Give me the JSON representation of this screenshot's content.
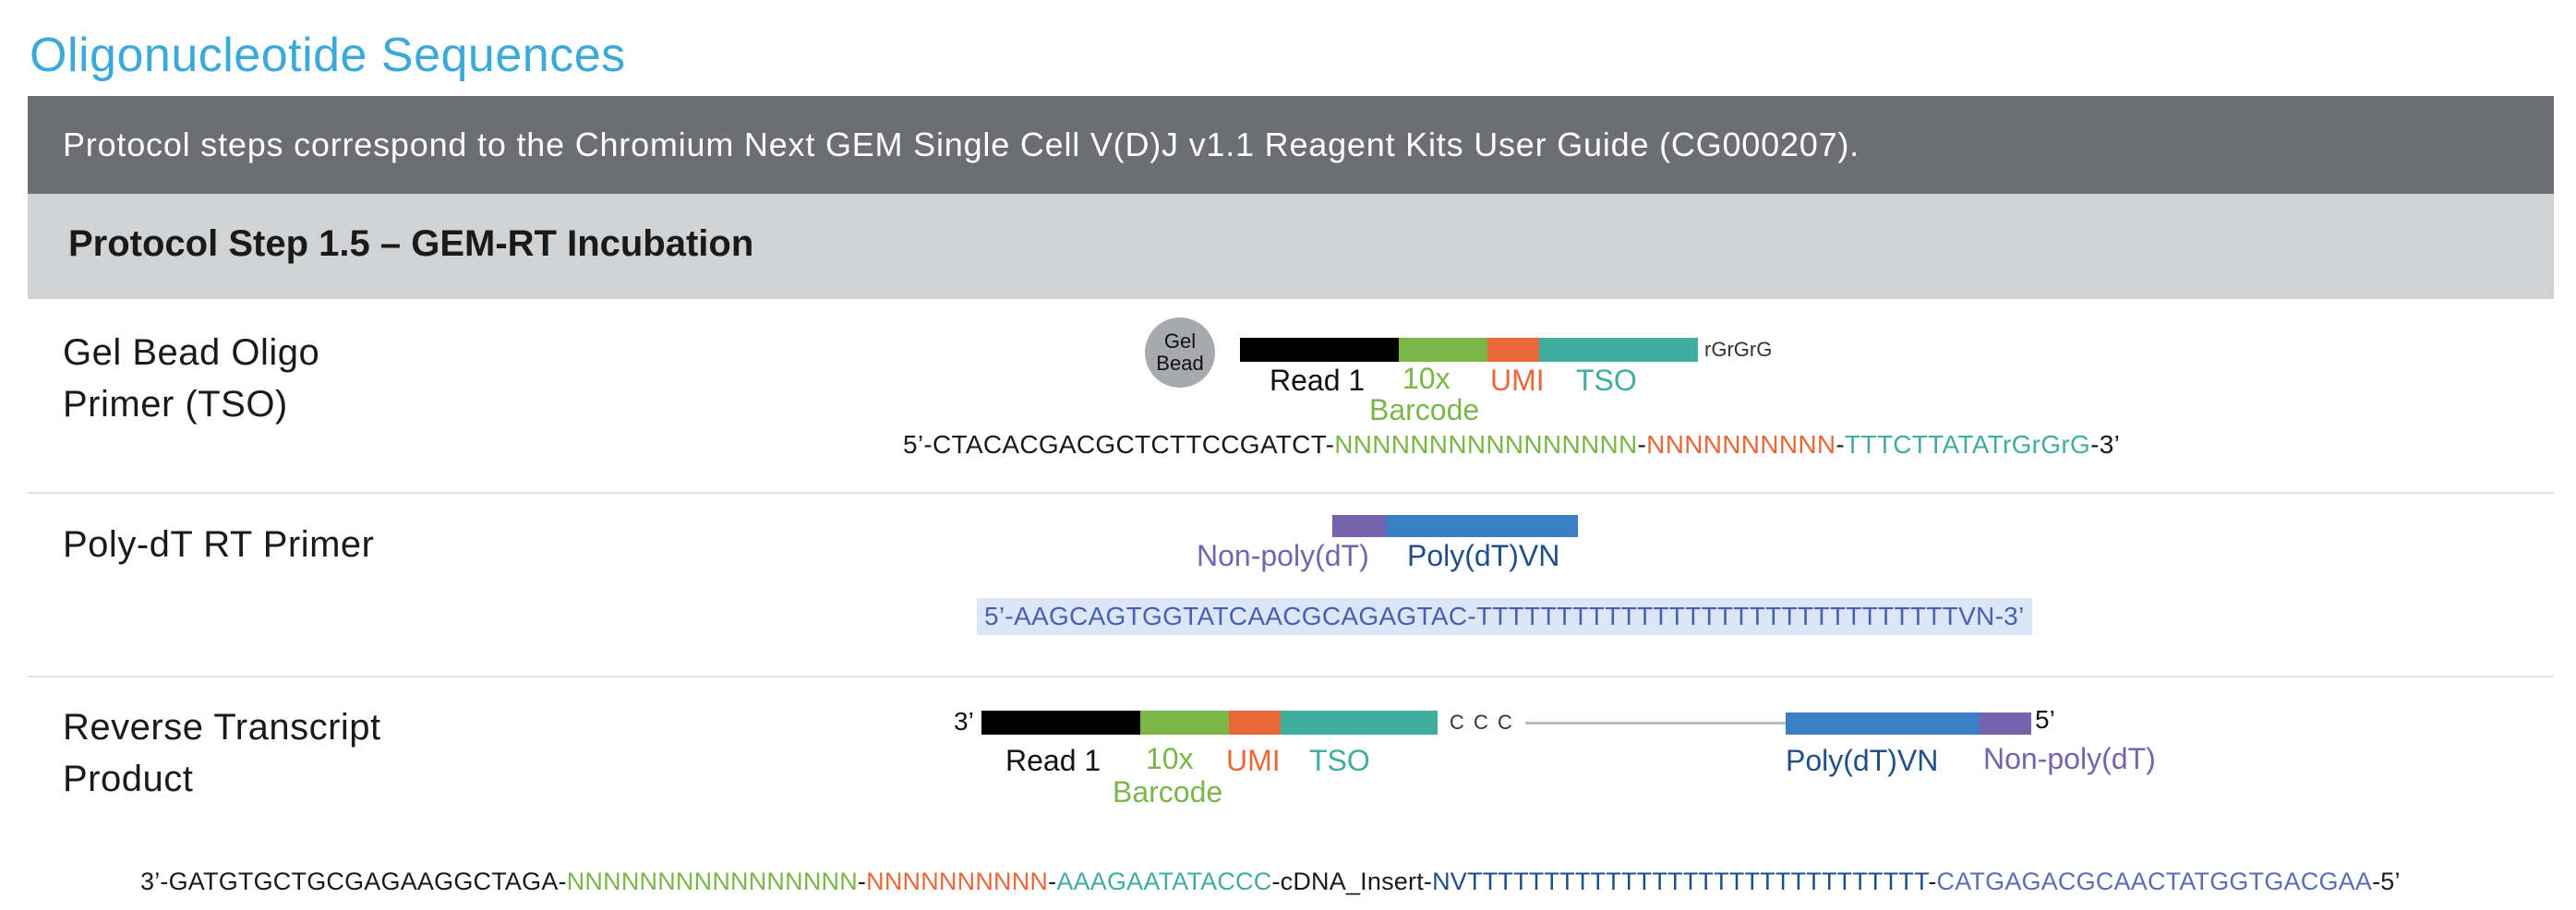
{
  "title": "Oligonucleotide Sequences",
  "banner": "Protocol steps correspond to the Chromium Next GEM Single Cell V(D)J v1.1 Reagent Kits User Guide (CG000207).",
  "step_title": "Protocol Step 1.5 – GEM-RT Incubation",
  "colors": {
    "title": "#3ba9d9",
    "read1": "#000000",
    "barcode": "#7ab648",
    "umi": "#e8683a",
    "tso": "#3fada0",
    "polydt": "#3a7fc4",
    "nonpolydt": "#7563ae",
    "highlight": "#dbe6f7"
  },
  "rows": [
    {
      "label_line1": "Gel Bead Oligo",
      "label_line2": "Primer (TSO)",
      "bead_line1": "Gel",
      "bead_line2": "Bead",
      "suffix": "rGrGrG",
      "labels": {
        "read1": "Read 1",
        "barcode_1": "10x",
        "barcode_2": "Barcode",
        "umi": "UMI",
        "tso": "TSO"
      },
      "sequence": {
        "prefix": "5’-CTACACGACGCTCTTCCGATCT-",
        "barcode": "NNNNNNNNNNNNNNNN",
        "dash1": "-",
        "umi": "NNNNNNNNNN",
        "dash2": "-",
        "tso": "TTTCTTATATrGrGrG",
        "end": "-3’"
      }
    },
    {
      "label_line1": "Poly-dT RT Primer",
      "labels": {
        "nonpolydt": "Non-poly(dT)",
        "polydt": "Poly(dT)VN"
      },
      "sequence": "5’-AAGCAGTGGTATCAACGCAGAGTAC-TTTTTTTTTTTTTTTTTTTTTTTTTTTTTTVN-3’"
    },
    {
      "label_line1": "Reverse Transcript",
      "label_line2": "Product",
      "end3": "3’",
      "end5": "5’",
      "ccc": "C C C",
      "labels": {
        "read1": "Read 1",
        "barcode_1": "10x",
        "barcode_2": "Barcode",
        "umi": "UMI",
        "tso": "TSO",
        "polydt": "Poly(dT)VN",
        "nonpolydt": "Non-poly(dT)"
      },
      "sequence": {
        "prefix": "3’-GATGTGCTGCGAGAAGGCTAGA-",
        "barcode": "NNNNNNNNNNNNNNNN",
        "dash1": "-",
        "umi": "NNNNNNNNNN",
        "dash2": "-",
        "tso": "AAAGAATATACCC",
        "insert": "-cDNA_Insert-",
        "polydt": "NVTTTTTTTTTTTTTTTTTTTTTTTTTTTTTT",
        "dash3": "-",
        "nonpolydt": "CATGAGACGCAACTATGGTGACGAA",
        "end": "-5’"
      }
    }
  ]
}
